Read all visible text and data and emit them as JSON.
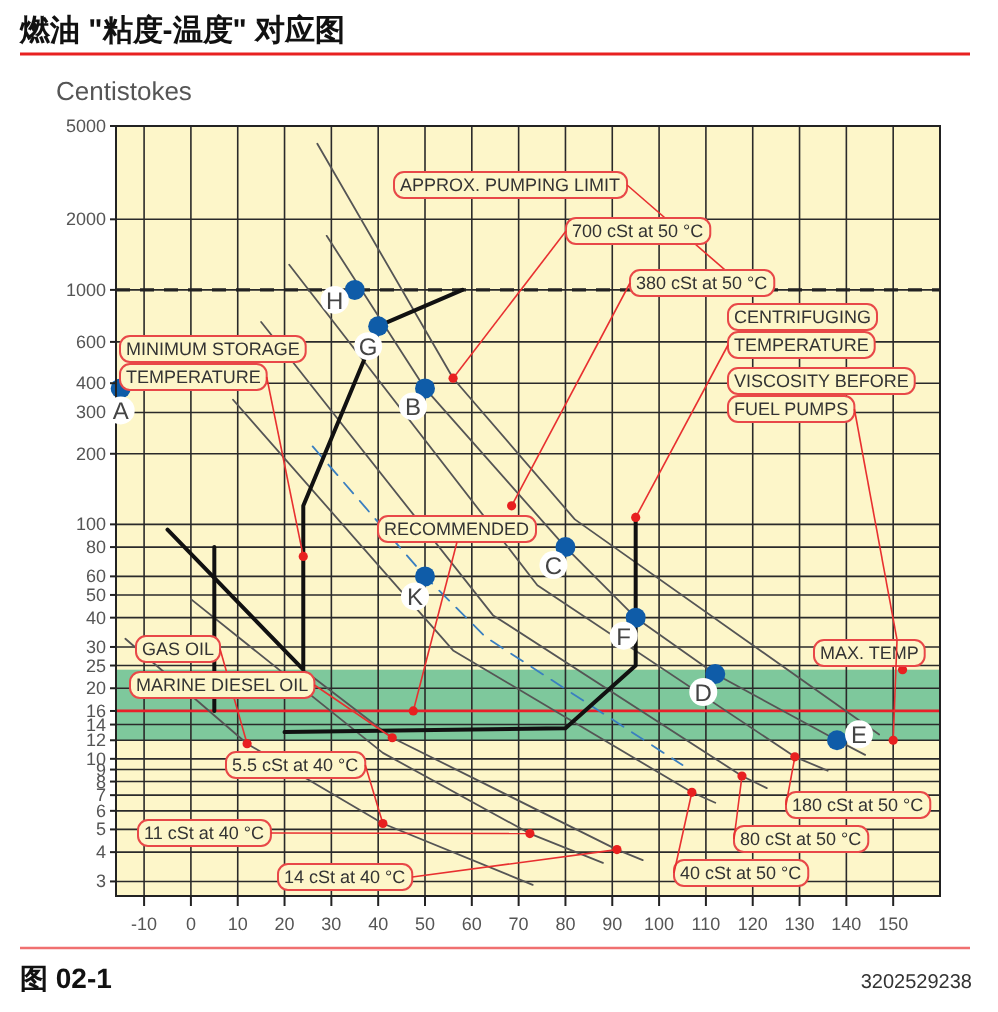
{
  "chart_data": {
    "type": "line",
    "title": "燃油 \"粘度-温度\" 对应图",
    "ylabel": "Centistokes",
    "xlim": [
      -16,
      160
    ],
    "xticks": [
      -10,
      0,
      10,
      20,
      30,
      40,
      50,
      60,
      70,
      80,
      90,
      100,
      110,
      120,
      130,
      140,
      150
    ],
    "ylim": [
      2.6,
      5000
    ],
    "yticks": [
      3,
      4,
      5,
      6,
      7,
      8,
      9,
      10,
      12,
      14,
      16,
      20,
      25,
      30,
      40,
      50,
      60,
      80,
      100,
      200,
      300,
      400,
      600,
      1000,
      2000,
      5000
    ],
    "log": "y",
    "grid": true,
    "bands": [
      {
        "axis": "y",
        "from": 12,
        "to": 24,
        "color": "#7ec89c"
      }
    ],
    "ref_lines": [
      {
        "axis": "y",
        "value": 16,
        "color": "#e8202a",
        "line_style": "solid"
      },
      {
        "axis": "y",
        "value": 1000,
        "color": "#222222",
        "line_style": "dashed"
      }
    ],
    "series": [
      {
        "color": "#555555",
        "line_style": "solid",
        "x": [
          27,
          56,
          82,
          147
        ],
        "values": [
          4200,
          420,
          105,
          12.7
        ]
      },
      {
        "color": "#555555",
        "line_style": "solid",
        "x": [
          29,
          50,
          80,
          95,
          112,
          138,
          144
        ],
        "values": [
          1700,
          380,
          80,
          40,
          23,
          12,
          10.4
        ]
      },
      {
        "color": "#555555",
        "line_style": "solid",
        "x": [
          21,
          74,
          129,
          136
        ],
        "values": [
          1280,
          55,
          10.2,
          8.9
        ]
      },
      {
        "color": "#555555",
        "line_style": "solid",
        "x": [
          15,
          64.5,
          117.7,
          123
        ],
        "values": [
          730,
          41,
          8.45,
          7.5
        ]
      },
      {
        "color": "#555555",
        "line_style": "solid",
        "x": [
          9,
          56,
          107,
          112
        ],
        "values": [
          340,
          29,
          7.2,
          6.5
        ]
      },
      {
        "color": "#3a7fc0",
        "line_style": "dashed",
        "x": [
          26,
          50,
          63,
          105
        ],
        "values": [
          215,
          60,
          33,
          9.4
        ]
      },
      {
        "color": "#555555",
        "line_style": "solid",
        "x": [
          -14,
          12,
          41,
          73
        ],
        "values": [
          32.5,
          11.6,
          5.3,
          2.9
        ]
      },
      {
        "color": "#555555",
        "line_style": "solid",
        "x": [
          0,
          41,
          72.4,
          88
        ],
        "values": [
          48,
          10.6,
          4.8,
          3.6
        ]
      },
      {
        "color": "#555555",
        "line_style": "solid",
        "x": [
          -5,
          24,
          43,
          91,
          96.5
        ],
        "values": [
          95,
          24,
          12.3,
          4.1,
          3.7
        ]
      },
      {
        "color": "#111111",
        "line_style": "solid",
        "x": [
          -5,
          24,
          24,
          40,
          58
        ],
        "values": [
          95,
          24,
          120,
          700,
          1000
        ]
      },
      {
        "color": "#111111",
        "line_style": "solid",
        "x": [
          5,
          5
        ],
        "values": [
          80,
          16
        ]
      },
      {
        "color": "#111111",
        "line_style": "solid",
        "x": [
          20,
          80,
          95,
          95
        ],
        "values": [
          13,
          13.5,
          25,
          110
        ]
      },
      {
        "type": "scatter",
        "color": "#0f5ca8",
        "x": [
          -15,
          35,
          40,
          50,
          50,
          80,
          95,
          112,
          138
        ],
        "values": [
          380,
          1000,
          700,
          380,
          60,
          80,
          40,
          23,
          12
        ]
      }
    ],
    "annotations": [
      {
        "text": "A",
        "x": -15,
        "y": 380
      },
      {
        "text": "H",
        "x": 35,
        "y": 1000
      },
      {
        "text": "G",
        "x": 40,
        "y": 700
      },
      {
        "text": "B",
        "x": 50,
        "y": 380
      },
      {
        "text": "K",
        "x": 50,
        "y": 60
      },
      {
        "text": "C",
        "x": 80,
        "y": 80
      },
      {
        "text": "F",
        "x": 95,
        "y": 40
      },
      {
        "text": "D",
        "x": 112,
        "y": 23
      },
      {
        "text": "E",
        "x": 138,
        "y": 12
      },
      {
        "text": "APPROX. PUMPING LIMIT",
        "x": 119,
        "y": 1000
      },
      {
        "text": "700 cSt at 50 °C",
        "x": 56,
        "y": 420
      },
      {
        "text": "380 cSt at 50 °C",
        "x": 68.5,
        "y": 120
      },
      {
        "text": "CENTRIFUGING\nTEMPERATURE",
        "x": 95,
        "y": 107
      },
      {
        "text": "VISCOSITY BEFORE\nFUEL PUMPS",
        "x": 152,
        "y": 24
      },
      {
        "text": "MAX. TEMP",
        "x": 150,
        "y": 12
      },
      {
        "text": "RECOMMENDED",
        "x": 47.5,
        "y": 16
      },
      {
        "text": "MINIMUM STORAGE\nTEMPERATURE",
        "x": 24,
        "y": 73
      },
      {
        "text": "GAS OIL",
        "x": 12,
        "y": 11.6
      },
      {
        "text": "MARINE DIESEL OIL",
        "x": 43,
        "y": 12.3
      },
      {
        "text": "5.5 cSt at 40 °C",
        "x": 41,
        "y": 5.3
      },
      {
        "text": "11 cSt at 40 °C",
        "x": 72.4,
        "y": 4.8
      },
      {
        "text": "14 cSt at 40 °C",
        "x": 91,
        "y": 4.1
      },
      {
        "text": "180 cSt at 50 °C",
        "x": 129,
        "y": 10.2
      },
      {
        "text": "80 cSt at 50 °C",
        "x": 117.7,
        "y": 8.45
      },
      {
        "text": "40 cSt at 50 °C",
        "x": 107,
        "y": 7.2
      },
      "图 02-1",
      "3202529238"
    ]
  }
}
